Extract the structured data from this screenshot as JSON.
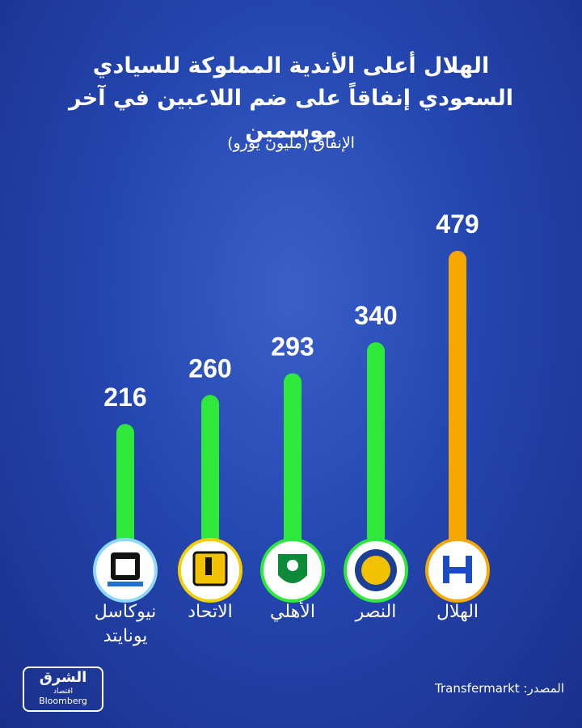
{
  "chart_data": {
    "type": "bar",
    "title": "الهلال أعلى الأندية المملوكة للسيادي السعودي إنفاقاً على ضم اللاعبين في آخر موسمين",
    "subtitle": "الإنفاق (مليون يورو)",
    "categories": [
      "نيوكاسل يونايتد",
      "الاتحاد",
      "الأهلي",
      "النصر",
      "الهلال"
    ],
    "values": [
      216,
      260,
      293,
      340,
      479
    ],
    "colors": [
      "#2ee83a",
      "#2ee83a",
      "#2ee83a",
      "#2ee83a",
      "#f7a800"
    ]
  },
  "source": "المصدر: Transfermarkt",
  "logo": {
    "name": "الشرق",
    "sub": "اقتصاد",
    "partner": "Bloomberg"
  }
}
